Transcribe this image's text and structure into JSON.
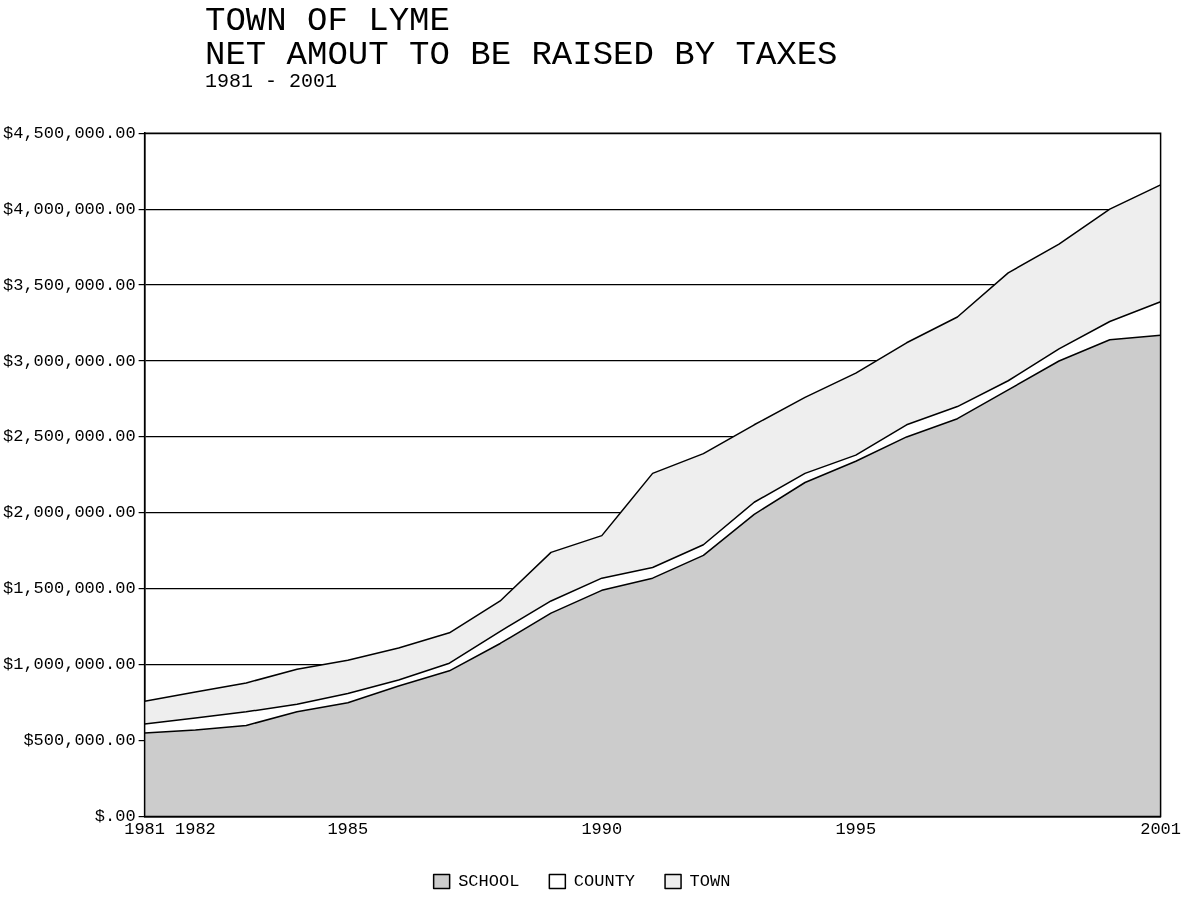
{
  "chart_data": {
    "type": "area",
    "stacked": true,
    "title": "TOWN OF LYME",
    "subtitle": "NET AMOUT TO BE RAISED BY TAXES",
    "annotations": [
      "1981 - 2001"
    ],
    "x": [
      1981,
      1982,
      1983,
      1984,
      1985,
      1986,
      1987,
      1988,
      1989,
      1990,
      1991,
      1992,
      1993,
      1994,
      1995,
      1996,
      1997,
      1998,
      1999,
      2000,
      2001
    ],
    "series": [
      {
        "name": "SCHOOL",
        "color": "#cccccc",
        "values": [
          550000,
          570000,
          600000,
          690000,
          750000,
          860000,
          960000,
          1140000,
          1340000,
          1490000,
          1570000,
          1720000,
          1990000,
          2200000,
          2340000,
          2500000,
          2620000,
          2810000,
          3000000,
          3140000,
          3170000
        ]
      },
      {
        "name": "COUNTY",
        "color": "#ffffff",
        "values": [
          60000,
          80000,
          90000,
          50000,
          60000,
          40000,
          50000,
          80000,
          80000,
          80000,
          70000,
          70000,
          80000,
          60000,
          40000,
          80000,
          80000,
          60000,
          80000,
          120000,
          220000
        ]
      },
      {
        "name": "TOWN",
        "color": "#eeeeee",
        "values": [
          150000,
          170000,
          190000,
          230000,
          220000,
          210000,
          200000,
          200000,
          320000,
          280000,
          620000,
          600000,
          510000,
          500000,
          540000,
          540000,
          590000,
          710000,
          690000,
          740000,
          770000
        ]
      }
    ],
    "xlim": [
      1981,
      2001
    ],
    "xticks": [
      1981,
      1982,
      1985,
      1990,
      1995,
      2001
    ],
    "ylim": [
      0,
      4500000
    ],
    "yticks": [
      {
        "value": 0,
        "label": "$.00"
      },
      {
        "value": 500000,
        "label": "$500,000.00"
      },
      {
        "value": 1000000,
        "label": "$1,000,000.00"
      },
      {
        "value": 1500000,
        "label": "$1,500,000.00"
      },
      {
        "value": 2000000,
        "label": "$2,000,000.00"
      },
      {
        "value": 2500000,
        "label": "$2,500,000.00"
      },
      {
        "value": 3000000,
        "label": "$3,000,000.00"
      },
      {
        "value": 3500000,
        "label": "$3,500,000.00"
      },
      {
        "value": 4000000,
        "label": "$4,000,000.00"
      },
      {
        "value": 4500000,
        "label": "$4,500,000.00"
      }
    ],
    "grid": "y",
    "legend": "bottom",
    "marker": "none"
  }
}
